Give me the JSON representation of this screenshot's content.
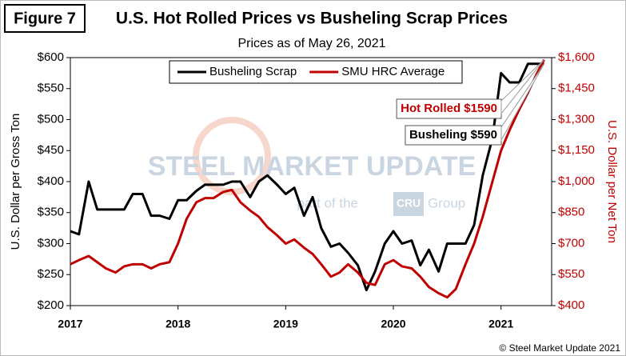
{
  "chart_data": {
    "type": "line",
    "figure_label": "Figure 7",
    "title": "U.S. Hot Rolled Prices vs Busheling Scrap Prices",
    "subtitle": "Prices as of May 26, 2021",
    "y_label": "U.S. Dollar per Gross Ton",
    "y2_label": "U.S. Dollar per Net Ton",
    "watermark": [
      "STEEL MARKET UPDATE",
      "part of the",
      "CRU",
      "Group"
    ],
    "copyright": "© Steel Market Update 2021",
    "annotations": [
      "Hot Rolled $1590",
      "Busheling $590"
    ],
    "x": [
      2017,
      2017.08,
      2017.17,
      2017.25,
      2017.33,
      2017.42,
      2017.5,
      2017.58,
      2017.67,
      2017.75,
      2017.83,
      2017.92,
      2018,
      2018.08,
      2018.17,
      2018.25,
      2018.33,
      2018.42,
      2018.5,
      2018.58,
      2018.67,
      2018.75,
      2018.83,
      2018.92,
      2019,
      2019.08,
      2019.17,
      2019.25,
      2019.33,
      2019.42,
      2019.5,
      2019.58,
      2019.67,
      2019.75,
      2019.83,
      2019.92,
      2020,
      2020.08,
      2020.17,
      2020.25,
      2020.33,
      2020.42,
      2020.5,
      2020.58,
      2020.67,
      2020.75,
      2020.83,
      2020.92,
      2021,
      2021.08,
      2021.17,
      2021.25,
      2021.33,
      2021.4
    ],
    "series": [
      {
        "name": "Busheling Scrap",
        "color": "#000000",
        "axis": "y",
        "values": [
          320,
          315,
          400,
          355,
          355,
          355,
          355,
          380,
          380,
          345,
          345,
          340,
          370,
          370,
          385,
          395,
          395,
          395,
          400,
          400,
          375,
          400,
          410,
          395,
          380,
          390,
          345,
          375,
          325,
          295,
          300,
          285,
          265,
          225,
          255,
          300,
          320,
          300,
          305,
          265,
          290,
          255,
          300,
          300,
          300,
          330,
          410,
          470,
          575,
          560,
          560,
          590,
          590,
          590
        ]
      },
      {
        "name": "SMU HRC Average",
        "color": "#c00000",
        "axis": "y2",
        "values": [
          600,
          620,
          640,
          610,
          580,
          560,
          590,
          600,
          600,
          580,
          600,
          610,
          700,
          820,
          900,
          920,
          920,
          950,
          960,
          900,
          860,
          830,
          780,
          740,
          700,
          720,
          680,
          650,
          600,
          540,
          560,
          600,
          560,
          510,
          500,
          600,
          620,
          590,
          580,
          540,
          490,
          460,
          440,
          480,
          600,
          700,
          830,
          1000,
          1150,
          1250,
          1350,
          1430,
          1520,
          1590
        ]
      }
    ],
    "xlim": [
      2017,
      2021.47
    ],
    "xticks": [
      2017,
      2018,
      2019,
      2020,
      2021
    ],
    "ylim": [
      200,
      600
    ],
    "yticks": [
      {
        "value": 200,
        "label": "$200"
      },
      {
        "value": 250,
        "label": "$250"
      },
      {
        "value": 300,
        "label": "$300"
      },
      {
        "value": 350,
        "label": "$350"
      },
      {
        "value": 400,
        "label": "$400"
      },
      {
        "value": 450,
        "label": "$450"
      },
      {
        "value": 500,
        "label": "$500"
      },
      {
        "value": 550,
        "label": "$550"
      },
      {
        "value": 600,
        "label": "$600"
      }
    ],
    "y2lim": [
      400,
      1600
    ],
    "y2ticks": [
      {
        "value": 400,
        "label": "$400"
      },
      {
        "value": 550,
        "label": "$550"
      },
      {
        "value": 700,
        "label": "$700"
      },
      {
        "value": 850,
        "label": "$850"
      },
      {
        "value": 1000,
        "label": "$1,000"
      },
      {
        "value": 1150,
        "label": "$1,150"
      },
      {
        "value": 1300,
        "label": "$1,300"
      },
      {
        "value": 1450,
        "label": "$1,450"
      },
      {
        "value": 1600,
        "label": "$1,600"
      }
    ],
    "grid": false,
    "legend": "top"
  }
}
